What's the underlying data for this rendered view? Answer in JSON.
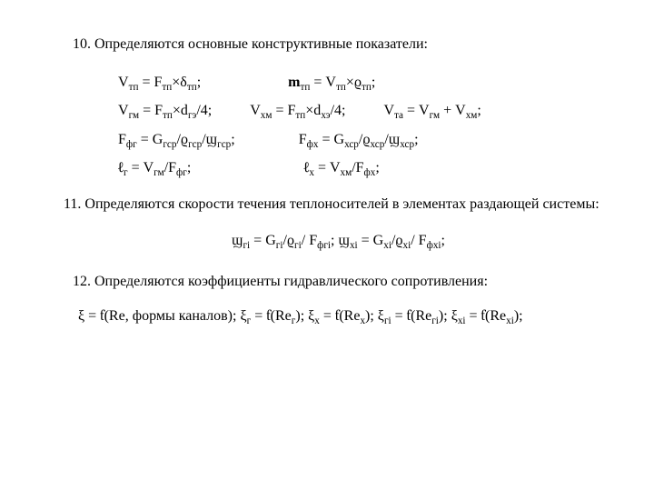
{
  "section10": {
    "heading": "10. Определяются основные конструктивные показатели:",
    "line1_a_pre": "V",
    "line1_a_sub": "тп",
    "line1_a_post": " = F",
    "line1_a_sub2": "тп",
    "line1_a_post2": "×δ",
    "line1_a_sub3": "тп",
    "line1_a_post3": ";",
    "line1_b_pre": "m",
    "line1_b_sub": "тп",
    "line1_b_post": " = V",
    "line1_b_sub2": "тп",
    "line1_b_post2": "×ϱ",
    "line1_b_sub3": "тп",
    "line1_b_post3": ";",
    "line2_a_pre": "V",
    "line2_a_sub": "гм",
    "line2_a_post": " = F",
    "line2_a_sub2": "тп",
    "line2_a_post2": "×d",
    "line2_a_sub3": "гэ",
    "line2_a_post3": "/4;",
    "line2_b_pre": "V",
    "line2_b_sub": "хм",
    "line2_b_post": " = F",
    "line2_b_sub2": "тп",
    "line2_b_post2": "×d",
    "line2_b_sub3": "хэ",
    "line2_b_post3": "/4;",
    "line2_c_pre": "V",
    "line2_c_sub": "та",
    "line2_c_post": " = V",
    "line2_c_sub2": "гм",
    "line2_c_post2": " + V",
    "line2_c_sub3": "хм",
    "line2_c_post3": ";",
    "line3_a_pre": "F",
    "line3_a_sub": "фг",
    "line3_a_post": " = G",
    "line3_a_sub2": "гср",
    "line3_a_post2": "/ϱ",
    "line3_a_sub3": "гср",
    "line3_a_post3": "/ϣ",
    "line3_a_sub4": "гср",
    "line3_a_post4": ";",
    "line3_b_pre": "F",
    "line3_b_sub": "фх",
    "line3_b_post": " = G",
    "line3_b_sub2": "хср",
    "line3_b_post2": "/ϱ",
    "line3_b_sub3": "хср",
    "line3_b_post3": "/ϣ",
    "line3_b_sub4": "хср",
    "line3_b_post4": ";",
    "line4_a_pre": "ℓ",
    "line4_a_sub": "г",
    "line4_a_post": " = V",
    "line4_a_sub2": "гм",
    "line4_a_post2": "/F",
    "line4_a_sub3": "фг",
    "line4_a_post3": ";",
    "line4_b_pre": "ℓ",
    "line4_b_sub": "х",
    "line4_b_post": " = V",
    "line4_b_sub2": "хм",
    "line4_b_post2": "/F",
    "line4_b_sub3": "фх",
    "line4_b_post3": ";"
  },
  "section11": {
    "heading": "11. Определяются скорости течения теплоносителей в элементах раздающей системы:",
    "eq_a_pre": "ϣ",
    "eq_a_sub": "гi",
    "eq_a_post": " = G",
    "eq_a_sub2": "гi",
    "eq_a_post2": "/ϱ",
    "eq_a_sub3": "гi",
    "eq_a_post3": "/ F",
    "eq_a_sub4": "фгi",
    "eq_a_post4": "; ",
    "eq_b_pre": "ϣ",
    "eq_b_sub": "хi",
    "eq_b_post": " = G",
    "eq_b_sub2": "хi",
    "eq_b_post2": "/ϱ",
    "eq_b_sub3": "хi",
    "eq_b_post3": "/ F",
    "eq_b_sub4": "фхi",
    "eq_b_post4": ";"
  },
  "section12": {
    "heading": "12. Определяются коэффициенты  гидравлического сопротивления:",
    "eq_p1": "ξ = ƭ(Re, формы каналов); ξ",
    "eq_s1": "г",
    "eq_p2": " = ƭ(Re",
    "eq_s2": "г",
    "eq_p3": "); ξ",
    "eq_s3": "х",
    "eq_p4": " = ƭ(Re",
    "eq_s4": "х",
    "eq_p5": "); ξ",
    "eq_s5": "гi",
    "eq_p6": " = ƭ(Re",
    "eq_s6": "гi",
    "eq_p7": "); ξ",
    "eq_s7": "хi",
    "eq_p8": " = ƭ(Re",
    "eq_s8": "хi",
    "eq_p9": ");"
  }
}
